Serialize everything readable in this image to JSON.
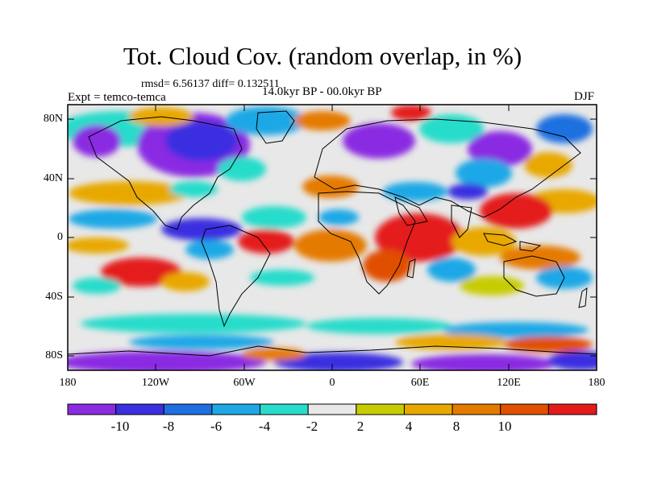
{
  "title": "Tot. Cloud Cov. (random overlap, in %)",
  "rmsd_text": "rmsd= 6.56137 diff= 0.132511",
  "expt_text": "Expt = temco-temca",
  "period_text": "14.0kyr BP - 00.0kyr BP",
  "season": "DJF",
  "lat_ticks": [
    "80N",
    "40N",
    "0",
    "40S",
    "80S"
  ],
  "lon_ticks": [
    "180",
    "120W",
    "60W",
    "0",
    "60E",
    "120E",
    "180"
  ],
  "colorbar": {
    "colors": [
      "#8a2be2",
      "#3b2ee0",
      "#1e6fe0",
      "#1ea8e6",
      "#28dccb",
      "#e8e8e8",
      "#c7cc00",
      "#e8a800",
      "#e57a00",
      "#e05000",
      "#e41a1a"
    ],
    "labels": [
      "-10",
      "-8",
      "-6",
      "-4",
      "-2",
      "2",
      "4",
      "8",
      "10"
    ]
  }
}
